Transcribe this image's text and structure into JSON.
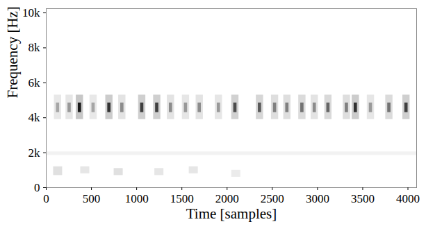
{
  "chart_data": {
    "type": "heatmap",
    "xlabel": "Time [samples]",
    "ylabel": "Frequency [Hz]",
    "xlim": [
      0,
      4096
    ],
    "ylim": [
      0,
      10240
    ],
    "xticks": [
      0,
      500,
      1000,
      1500,
      2000,
      2500,
      3000,
      3500,
      4000
    ],
    "yticks": [
      0,
      {
        "value": 2000,
        "label": "2k"
      },
      {
        "value": 4000,
        "label": "4k"
      },
      {
        "value": 6000,
        "label": "6k"
      },
      {
        "value": 8000,
        "label": "8k"
      },
      {
        "value": 10000,
        "label": "10k"
      }
    ],
    "zlim": [
      0,
      1
    ],
    "color": [
      "#ffffff",
      "#000000"
    ],
    "grid": false,
    "cells": [
      [
        0,
        4096,
        1850,
        2050,
        0.05
      ],
      [
        80,
        180,
        700,
        1200,
        0.12
      ],
      [
        380,
        480,
        800,
        1200,
        0.1
      ],
      [
        750,
        850,
        700,
        1100,
        0.12
      ],
      [
        1200,
        1300,
        700,
        1100,
        0.1
      ],
      [
        1580,
        1680,
        800,
        1200,
        0.1
      ],
      [
        2050,
        2150,
        600,
        1000,
        0.08
      ],
      [
        89,
        169,
        3900,
        5300,
        0.09
      ],
      [
        217,
        297,
        3900,
        5300,
        0.1
      ],
      [
        331,
        411,
        3900,
        5300,
        0.22
      ],
      [
        482,
        562,
        3900,
        5300,
        0.09
      ],
      [
        657,
        737,
        3900,
        5300,
        0.2
      ],
      [
        800,
        880,
        3900,
        5300,
        0.11
      ],
      [
        1020,
        1100,
        3900,
        5300,
        0.19
      ],
      [
        1186,
        1266,
        3900,
        5300,
        0.19
      ],
      [
        1338,
        1418,
        3900,
        5300,
        0.11
      ],
      [
        1504,
        1584,
        3900,
        5300,
        0.1
      ],
      [
        1656,
        1736,
        3900,
        5300,
        0.11
      ],
      [
        1868,
        1948,
        3900,
        5300,
        0.1
      ],
      [
        2050,
        2130,
        3900,
        5300,
        0.18
      ],
      [
        2322,
        2402,
        3900,
        5300,
        0.16
      ],
      [
        2489,
        2569,
        3900,
        5300,
        0.13
      ],
      [
        2625,
        2705,
        3900,
        5300,
        0.13
      ],
      [
        2791,
        2871,
        3900,
        5300,
        0.14
      ],
      [
        2928,
        3008,
        3900,
        5300,
        0.11
      ],
      [
        3079,
        3159,
        3900,
        5300,
        0.15
      ],
      [
        3283,
        3363,
        3900,
        5300,
        0.13
      ],
      [
        3382,
        3462,
        3900,
        5300,
        0.2
      ],
      [
        3549,
        3629,
        3900,
        5300,
        0.1
      ],
      [
        3753,
        3833,
        3900,
        5300,
        0.14
      ],
      [
        3942,
        4022,
        3900,
        5300,
        0.19
      ],
      [
        111,
        147,
        4300,
        4850,
        0.35
      ],
      [
        239,
        275,
        4300,
        4850,
        0.4
      ],
      [
        353,
        389,
        4300,
        4850,
        0.9
      ],
      [
        504,
        540,
        4300,
        4850,
        0.35
      ],
      [
        679,
        715,
        4300,
        4850,
        0.8
      ],
      [
        822,
        858,
        4300,
        4850,
        0.45
      ],
      [
        1042,
        1078,
        4300,
        4850,
        0.75
      ],
      [
        1208,
        1244,
        4300,
        4850,
        0.75
      ],
      [
        1360,
        1396,
        4300,
        4850,
        0.45
      ],
      [
        1526,
        1562,
        4300,
        4850,
        0.4
      ],
      [
        1678,
        1714,
        4300,
        4850,
        0.45
      ],
      [
        1890,
        1926,
        4300,
        4850,
        0.4
      ],
      [
        2072,
        2108,
        4300,
        4850,
        0.7
      ],
      [
        2344,
        2380,
        4300,
        4850,
        0.65
      ],
      [
        2511,
        2547,
        4300,
        4850,
        0.5
      ],
      [
        2647,
        2683,
        4300,
        4850,
        0.5
      ],
      [
        2813,
        2849,
        4300,
        4850,
        0.55
      ],
      [
        2950,
        2986,
        4300,
        4850,
        0.45
      ],
      [
        3101,
        3137,
        4300,
        4850,
        0.6
      ],
      [
        3305,
        3341,
        4300,
        4850,
        0.5
      ],
      [
        3404,
        3440,
        4300,
        4850,
        0.8
      ],
      [
        3571,
        3607,
        4300,
        4850,
        0.4
      ],
      [
        3775,
        3811,
        4300,
        4850,
        0.55
      ],
      [
        3964,
        4000,
        4300,
        4850,
        0.75
      ]
    ]
  }
}
